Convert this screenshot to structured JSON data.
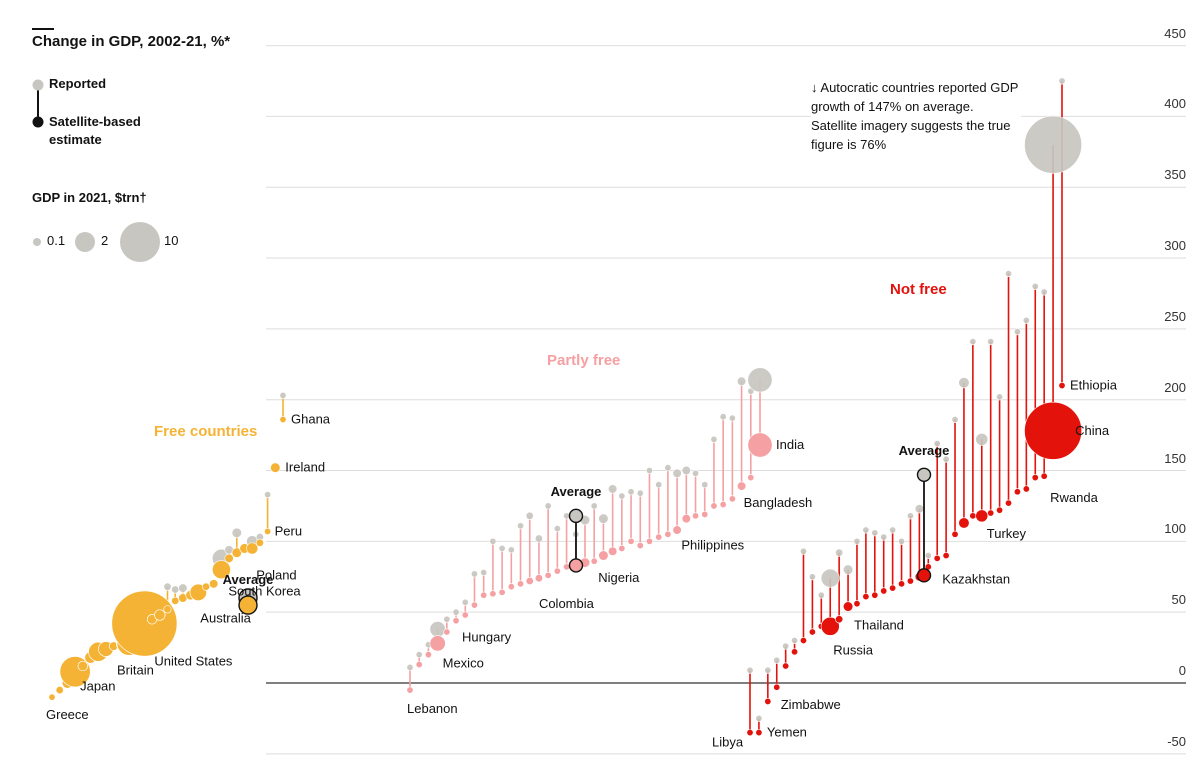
{
  "chart_data": {
    "type": "dot-range",
    "title": "Change in GDP, 2002-21, %*",
    "legend": {
      "reported": "Reported",
      "satellite": "Satellite-based estimate",
      "size_title": "GDP in 2021, $trn†",
      "sizes": [
        {
          "label": "0.1",
          "value": 0.1
        },
        {
          "label": "2",
          "value": 2
        },
        {
          "label": "10",
          "value": 10
        }
      ]
    },
    "annotation": "↓ Autocratic countries reported GDP growth of 147% on average. Satellite imagery suggests the true figure is 76%",
    "ylim": [
      -50,
      450
    ],
    "yticks": [
      -50,
      0,
      50,
      100,
      150,
      200,
      250,
      300,
      350,
      400,
      450
    ],
    "groups": [
      {
        "name": "Free countries",
        "color": "#f5b335",
        "line_color": "#f5b335",
        "average": {
          "label": "Average",
          "reported": 60,
          "satellite": 55
        },
        "countries": [
          {
            "name": "Greece",
            "reported": -10,
            "satellite": -10,
            "gdp": 0.2
          },
          {
            "name": "",
            "reported": -5,
            "satellite": -5,
            "gdp": 0.3
          },
          {
            "name": "",
            "reported": 0,
            "satellite": 0,
            "gdp": 0.6
          },
          {
            "name": "Japan",
            "reported": 8,
            "satellite": 8,
            "gdp": 5.0
          },
          {
            "name": "",
            "reported": 12,
            "satellite": 12,
            "gdp": 0.5
          },
          {
            "name": "",
            "reported": 18,
            "satellite": 18,
            "gdp": 0.7
          },
          {
            "name": "",
            "reported": 22,
            "satellite": 22,
            "gdp": 2.0
          },
          {
            "name": "",
            "reported": 24,
            "satellite": 24,
            "gdp": 1.2
          },
          {
            "name": "",
            "reported": 26,
            "satellite": 26,
            "gdp": 0.4
          },
          {
            "name": "",
            "reported": 27,
            "satellite": 27,
            "gdp": 0.5
          },
          {
            "name": "Britain",
            "reported": 28,
            "satellite": 28,
            "gdp": 3.1
          },
          {
            "name": "",
            "reported": 31,
            "satellite": 31,
            "gdp": 0.5
          },
          {
            "name": "United States",
            "reported": 42,
            "satellite": 42,
            "gdp": 23.0
          },
          {
            "name": "",
            "reported": 45,
            "satellite": 45,
            "gdp": 0.5
          },
          {
            "name": "",
            "reported": 48,
            "satellite": 48,
            "gdp": 0.6
          },
          {
            "name": "",
            "reported": 68,
            "satellite": 52,
            "gdp": 0.3
          },
          {
            "name": "",
            "reported": 66,
            "satellite": 58,
            "gdp": 0.3
          },
          {
            "name": "",
            "reported": 67,
            "satellite": 60,
            "gdp": 0.4
          },
          {
            "name": "",
            "reported": 62,
            "satellite": 62,
            "gdp": 0.5
          },
          {
            "name": "Australia",
            "reported": 64,
            "satellite": 64,
            "gdp": 1.5
          },
          {
            "name": "",
            "reported": 68,
            "satellite": 68,
            "gdp": 0.3
          },
          {
            "name": "",
            "reported": 70,
            "satellite": 70,
            "gdp": 0.4
          },
          {
            "name": "South Korea",
            "reported": 88,
            "satellite": 80,
            "gdp": 1.8
          },
          {
            "name": "",
            "reported": 94,
            "satellite": 88,
            "gdp": 0.4
          },
          {
            "name": "",
            "reported": 106,
            "satellite": 92,
            "gdp": 0.5
          },
          {
            "name": "",
            "reported": 95,
            "satellite": 95,
            "gdp": 0.5
          },
          {
            "name": "Poland",
            "reported": 100,
            "satellite": 95,
            "gdp": 0.7
          },
          {
            "name": "",
            "reported": 103,
            "satellite": 99,
            "gdp": 0.3
          },
          {
            "name": "Peru",
            "reported": 133,
            "satellite": 107,
            "gdp": 0.2
          },
          {
            "name": "Ireland",
            "reported": 152,
            "satellite": 152,
            "gdp": 0.5
          },
          {
            "name": "Ghana",
            "reported": 203,
            "satellite": 186,
            "gdp": 0.08
          }
        ]
      },
      {
        "name": "Partly free",
        "color": "#f5a0a2",
        "line_color": "#f5a0a2",
        "average": {
          "label": "Average",
          "reported": 118,
          "satellite": 83
        },
        "countries": [
          {
            "name": "Lebanon",
            "reported": 11,
            "satellite": -5,
            "gdp": 0.03
          },
          {
            "name": "",
            "reported": 20,
            "satellite": 13,
            "gdp": 0.1
          },
          {
            "name": "",
            "reported": 27,
            "satellite": 20,
            "gdp": 0.1
          },
          {
            "name": "Mexico",
            "reported": 38,
            "satellite": 28,
            "gdp": 1.3
          },
          {
            "name": "",
            "reported": 45,
            "satellite": 36,
            "gdp": 0.2
          },
          {
            "name": "Hungary",
            "reported": 50,
            "satellite": 44,
            "gdp": 0.2
          },
          {
            "name": "",
            "reported": 57,
            "satellite": 48,
            "gdp": 0.05
          },
          {
            "name": "",
            "reported": 77,
            "satellite": 55,
            "gdp": 0.1
          },
          {
            "name": "",
            "reported": 78,
            "satellite": 62,
            "gdp": 0.1
          },
          {
            "name": "",
            "reported": 100,
            "satellite": 63,
            "gdp": 0.1
          },
          {
            "name": "",
            "reported": 95,
            "satellite": 64,
            "gdp": 0.1
          },
          {
            "name": "",
            "reported": 94,
            "satellite": 68,
            "gdp": 0.1
          },
          {
            "name": "",
            "reported": 111,
            "satellite": 70,
            "gdp": 0.1
          },
          {
            "name": "",
            "reported": 118,
            "satellite": 72,
            "gdp": 0.3
          },
          {
            "name": "Colombia",
            "reported": 102,
            "satellite": 74,
            "gdp": 0.3
          },
          {
            "name": "",
            "reported": 125,
            "satellite": 76,
            "gdp": 0.1
          },
          {
            "name": "",
            "reported": 109,
            "satellite": 79,
            "gdp": 0.1
          },
          {
            "name": "",
            "reported": 118,
            "satellite": 82,
            "gdp": 0.1
          },
          {
            "name": "",
            "reported": 105,
            "satellite": 84,
            "gdp": 0.2
          },
          {
            "name": "",
            "reported": 115,
            "satellite": 85,
            "gdp": 0.5
          },
          {
            "name": "Nigeria",
            "reported": 125,
            "satellite": 86,
            "gdp": 0.1
          },
          {
            "name": "",
            "reported": 116,
            "satellite": 90,
            "gdp": 0.5
          },
          {
            "name": "",
            "reported": 137,
            "satellite": 93,
            "gdp": 0.4
          },
          {
            "name": "",
            "reported": 132,
            "satellite": 95,
            "gdp": 0.2
          },
          {
            "name": "",
            "reported": 135,
            "satellite": 100,
            "gdp": 0.05
          },
          {
            "name": "",
            "reported": 134,
            "satellite": 97,
            "gdp": 0.05
          },
          {
            "name": "",
            "reported": 150,
            "satellite": 100,
            "gdp": 0.05
          },
          {
            "name": "",
            "reported": 140,
            "satellite": 103,
            "gdp": 0.05
          },
          {
            "name": "",
            "reported": 152,
            "satellite": 105,
            "gdp": 0.05
          },
          {
            "name": "",
            "reported": 148,
            "satellite": 108,
            "gdp": 0.4
          },
          {
            "name": "Philippines",
            "reported": 150,
            "satellite": 116,
            "gdp": 0.4
          },
          {
            "name": "",
            "reported": 148,
            "satellite": 118,
            "gdp": 0.05
          },
          {
            "name": "",
            "reported": 140,
            "satellite": 119,
            "gdp": 0.05
          },
          {
            "name": "",
            "reported": 172,
            "satellite": 125,
            "gdp": 0.05
          },
          {
            "name": "",
            "reported": 188,
            "satellite": 126,
            "gdp": 0.05
          },
          {
            "name": "",
            "reported": 187,
            "satellite": 130,
            "gdp": 0.05
          },
          {
            "name": "Bangladesh",
            "reported": 213,
            "satellite": 139,
            "gdp": 0.4
          },
          {
            "name": "",
            "reported": 206,
            "satellite": 145,
            "gdp": 0.05
          },
          {
            "name": "India",
            "reported": 214,
            "satellite": 168,
            "gdp": 3.2
          }
        ]
      },
      {
        "name": "Not free",
        "color": "#e3120b",
        "line_color": "#e3120b",
        "average": {
          "label": "Average",
          "reported": 147,
          "satellite": 76
        },
        "countries": [
          {
            "name": "Libya",
            "reported": 9,
            "satellite": -35,
            "gdp": 0.04
          },
          {
            "name": "Yemen",
            "reported": -25,
            "satellite": -35,
            "gdp": 0.02
          },
          {
            "name": "",
            "reported": 9,
            "satellite": -13,
            "gdp": 0.03
          },
          {
            "name": "Zimbabwe",
            "reported": 16,
            "satellite": -3,
            "gdp": 0.03
          },
          {
            "name": "",
            "reported": 26,
            "satellite": 12,
            "gdp": 0.05
          },
          {
            "name": "",
            "reported": 30,
            "satellite": 22,
            "gdp": 0.05
          },
          {
            "name": "",
            "reported": 93,
            "satellite": 30,
            "gdp": 0.03
          },
          {
            "name": "",
            "reported": 75,
            "satellite": 36,
            "gdp": 0.05
          },
          {
            "name": "",
            "reported": 62,
            "satellite": 40,
            "gdp": 0.1
          },
          {
            "name": "Russia",
            "reported": 74,
            "satellite": 40,
            "gdp": 1.8
          },
          {
            "name": "",
            "reported": 92,
            "satellite": 45,
            "gdp": 0.3
          },
          {
            "name": "Thailand",
            "reported": 80,
            "satellite": 54,
            "gdp": 0.5
          },
          {
            "name": "",
            "reported": 100,
            "satellite": 56,
            "gdp": 0.1
          },
          {
            "name": "",
            "reported": 108,
            "satellite": 61,
            "gdp": 0.05
          },
          {
            "name": "",
            "reported": 106,
            "satellite": 62,
            "gdp": 0.05
          },
          {
            "name": "",
            "reported": 103,
            "satellite": 65,
            "gdp": 0.05
          },
          {
            "name": "",
            "reported": 108,
            "satellite": 67,
            "gdp": 0.05
          },
          {
            "name": "",
            "reported": 100,
            "satellite": 70,
            "gdp": 0.05
          },
          {
            "name": "",
            "reported": 118,
            "satellite": 72,
            "gdp": 0.2
          },
          {
            "name": "",
            "reported": 123,
            "satellite": 75,
            "gdp": 0.4
          },
          {
            "name": "",
            "reported": 90,
            "satellite": 82,
            "gdp": 0.05
          },
          {
            "name": "Kazakhstan",
            "reported": 169,
            "satellite": 88,
            "gdp": 0.2
          },
          {
            "name": "",
            "reported": 158,
            "satellite": 90,
            "gdp": 0.2
          },
          {
            "name": "",
            "reported": 186,
            "satellite": 105,
            "gdp": 0.05
          },
          {
            "name": "",
            "reported": 212,
            "satellite": 113,
            "gdp": 0.6
          },
          {
            "name": "",
            "reported": 241,
            "satellite": 118,
            "gdp": 0.1
          },
          {
            "name": "Turkey",
            "reported": 172,
            "satellite": 118,
            "gdp": 0.8
          },
          {
            "name": "",
            "reported": 241,
            "satellite": 120,
            "gdp": 0.05
          },
          {
            "name": "",
            "reported": 202,
            "satellite": 122,
            "gdp": 0.05
          },
          {
            "name": "",
            "reported": 289,
            "satellite": 127,
            "gdp": 0.05
          },
          {
            "name": "",
            "reported": 248,
            "satellite": 135,
            "gdp": 0.05
          },
          {
            "name": "",
            "reported": 256,
            "satellite": 137,
            "gdp": 0.05
          },
          {
            "name": "",
            "reported": 280,
            "satellite": 145,
            "gdp": 0.05
          },
          {
            "name": "Rwanda",
            "reported": 276,
            "satellite": 146,
            "gdp": 0.05
          },
          {
            "name": "China",
            "reported": 380,
            "satellite": 178,
            "gdp": 17.7
          },
          {
            "name": "Ethiopia",
            "reported": 425,
            "satellite": 210,
            "gdp": 0.1
          }
        ]
      }
    ]
  }
}
